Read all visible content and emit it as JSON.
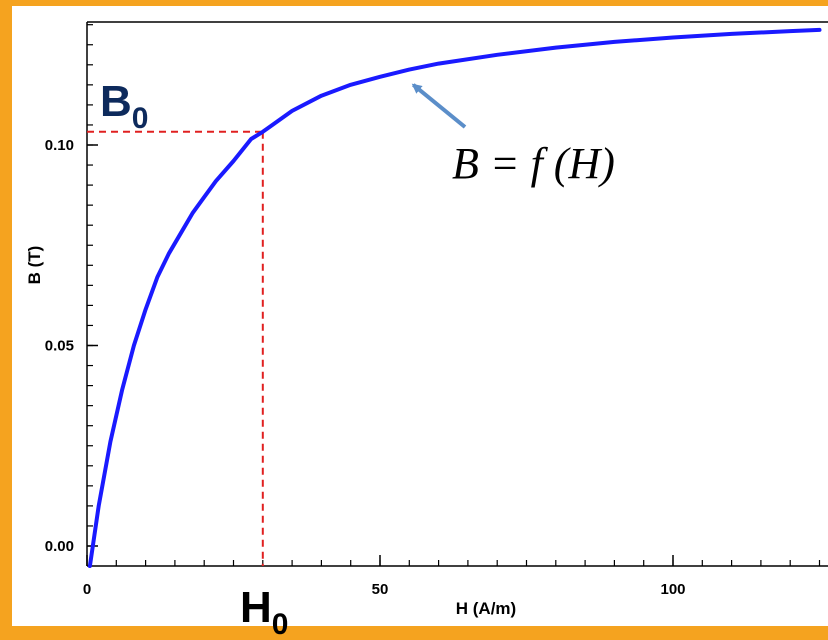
{
  "chart_data": {
    "type": "line",
    "xlabel": "H (A/m)",
    "ylabel": "B (T)",
    "xlim": [
      0,
      125
    ],
    "ylim": [
      -0.005,
      0.13
    ],
    "x_ticks": [
      {
        "value": 0,
        "label": "0"
      },
      {
        "value": 50,
        "label": "50"
      },
      {
        "value": 100,
        "label": "100"
      }
    ],
    "y_ticks": [
      {
        "value": 0.0,
        "label": "0.00"
      },
      {
        "value": 0.05,
        "label": "0.05"
      },
      {
        "value": 0.1,
        "label": "0.10"
      }
    ],
    "series": [
      {
        "color": "#1a1aff",
        "x": [
          0.5,
          2,
          4,
          6,
          8,
          10,
          12,
          14,
          16,
          18,
          20,
          22,
          25,
          28,
          30,
          35,
          40,
          45,
          50,
          55,
          60,
          70,
          80,
          90,
          100,
          110,
          120,
          125
        ],
        "y": [
          -0.005,
          0.01,
          0.026,
          0.039,
          0.05,
          0.059,
          0.067,
          0.073,
          0.078,
          0.083,
          0.087,
          0.091,
          0.096,
          0.1015,
          0.1033,
          0.1085,
          0.1123,
          0.115,
          0.117,
          0.1188,
          0.1203,
          0.1225,
          0.1243,
          0.1257,
          0.1268,
          0.1277,
          0.1284,
          0.1287
        ]
      }
    ],
    "annotations": {
      "operating_point": {
        "x": 30,
        "y": 0.1033
      },
      "b_marker": {
        "text": "B",
        "subscript": "0"
      },
      "h_marker": {
        "text": "H",
        "subscript": "0"
      },
      "equation": "B = f (H)",
      "arrow_target": {
        "x": 55,
        "y": 0.1165
      }
    },
    "colors": {
      "curve": "#1a1aff",
      "guide": "#e02020",
      "marker_text": "#0d2a5c",
      "arrow": "#5b8ec9",
      "frame": "#f5a31f"
    }
  }
}
